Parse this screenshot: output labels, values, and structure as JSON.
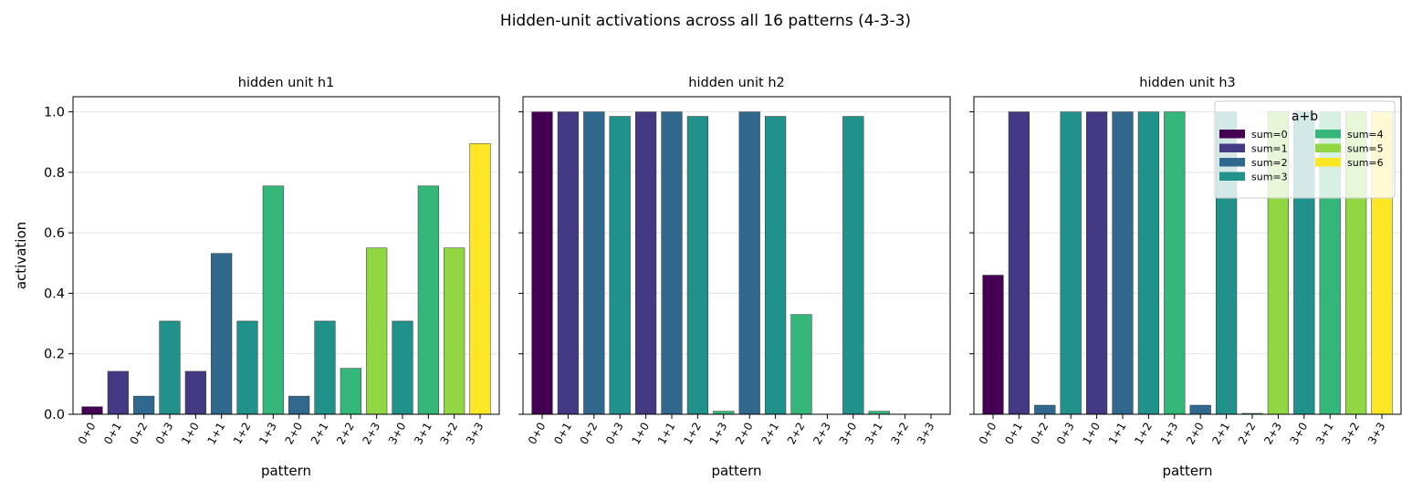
{
  "title": "Hidden-unit activations across all 16 patterns (4-3-3)",
  "colors": {
    "sum0": "#440154",
    "sum1": "#443983",
    "sum2": "#31688e",
    "sum3": "#21918c",
    "sum4": "#35b779",
    "sum5": "#90d743",
    "sum6": "#fde725"
  },
  "chart_data": [
    {
      "type": "bar",
      "title": "hidden unit h1",
      "xlabel": "pattern",
      "ylabel": "activation",
      "ylim": [
        0,
        1.05
      ],
      "yticks": [
        "0.0",
        "0.2",
        "0.4",
        "0.6",
        "0.8",
        "1.0"
      ],
      "grid": "y",
      "categories": [
        "0+0",
        "0+1",
        "0+2",
        "0+3",
        "1+0",
        "1+1",
        "1+2",
        "1+3",
        "2+0",
        "2+1",
        "2+2",
        "2+3",
        "3+0",
        "3+1",
        "3+2",
        "3+3"
      ],
      "sums": [
        0,
        1,
        2,
        3,
        1,
        2,
        3,
        4,
        2,
        3,
        4,
        5,
        3,
        4,
        5,
        6
      ],
      "values": [
        0.025,
        0.142,
        0.06,
        0.308,
        0.142,
        0.532,
        0.308,
        0.755,
        0.06,
        0.308,
        0.152,
        0.55,
        0.308,
        0.755,
        0.55,
        0.895
      ]
    },
    {
      "type": "bar",
      "title": "hidden unit h2",
      "xlabel": "pattern",
      "ylabel": "",
      "ylim": [
        0,
        1.05
      ],
      "grid": "y",
      "categories": [
        "0+0",
        "0+1",
        "0+2",
        "0+3",
        "1+0",
        "1+1",
        "1+2",
        "1+3",
        "2+0",
        "2+1",
        "2+2",
        "2+3",
        "3+0",
        "3+1",
        "3+2",
        "3+3"
      ],
      "sums": [
        0,
        1,
        2,
        3,
        1,
        2,
        3,
        4,
        2,
        3,
        4,
        5,
        3,
        4,
        5,
        6
      ],
      "values": [
        1.0,
        1.0,
        1.0,
        0.985,
        1.0,
        1.0,
        0.985,
        0.01,
        1.0,
        0.985,
        0.33,
        0.0,
        0.985,
        0.01,
        0.0,
        0.0
      ]
    },
    {
      "type": "bar",
      "title": "hidden unit h3",
      "xlabel": "pattern",
      "ylabel": "",
      "ylim": [
        0,
        1.05
      ],
      "grid": "y",
      "categories": [
        "0+0",
        "0+1",
        "0+2",
        "0+3",
        "1+0",
        "1+1",
        "1+2",
        "1+3",
        "2+0",
        "2+1",
        "2+2",
        "2+3",
        "3+0",
        "3+1",
        "3+2",
        "3+3"
      ],
      "sums": [
        0,
        1,
        2,
        3,
        1,
        2,
        3,
        4,
        2,
        3,
        4,
        5,
        3,
        4,
        5,
        6
      ],
      "values": [
        0.46,
        1.0,
        0.03,
        1.0,
        1.0,
        1.0,
        1.0,
        1.0,
        0.03,
        1.0,
        0.003,
        1.0,
        1.0,
        1.0,
        1.0,
        1.0
      ],
      "legend": {
        "title": "a+b",
        "placement": "top-right",
        "entries": [
          "sum=0",
          "sum=1",
          "sum=2",
          "sum=3",
          "sum=4",
          "sum=5",
          "sum=6"
        ]
      }
    }
  ]
}
